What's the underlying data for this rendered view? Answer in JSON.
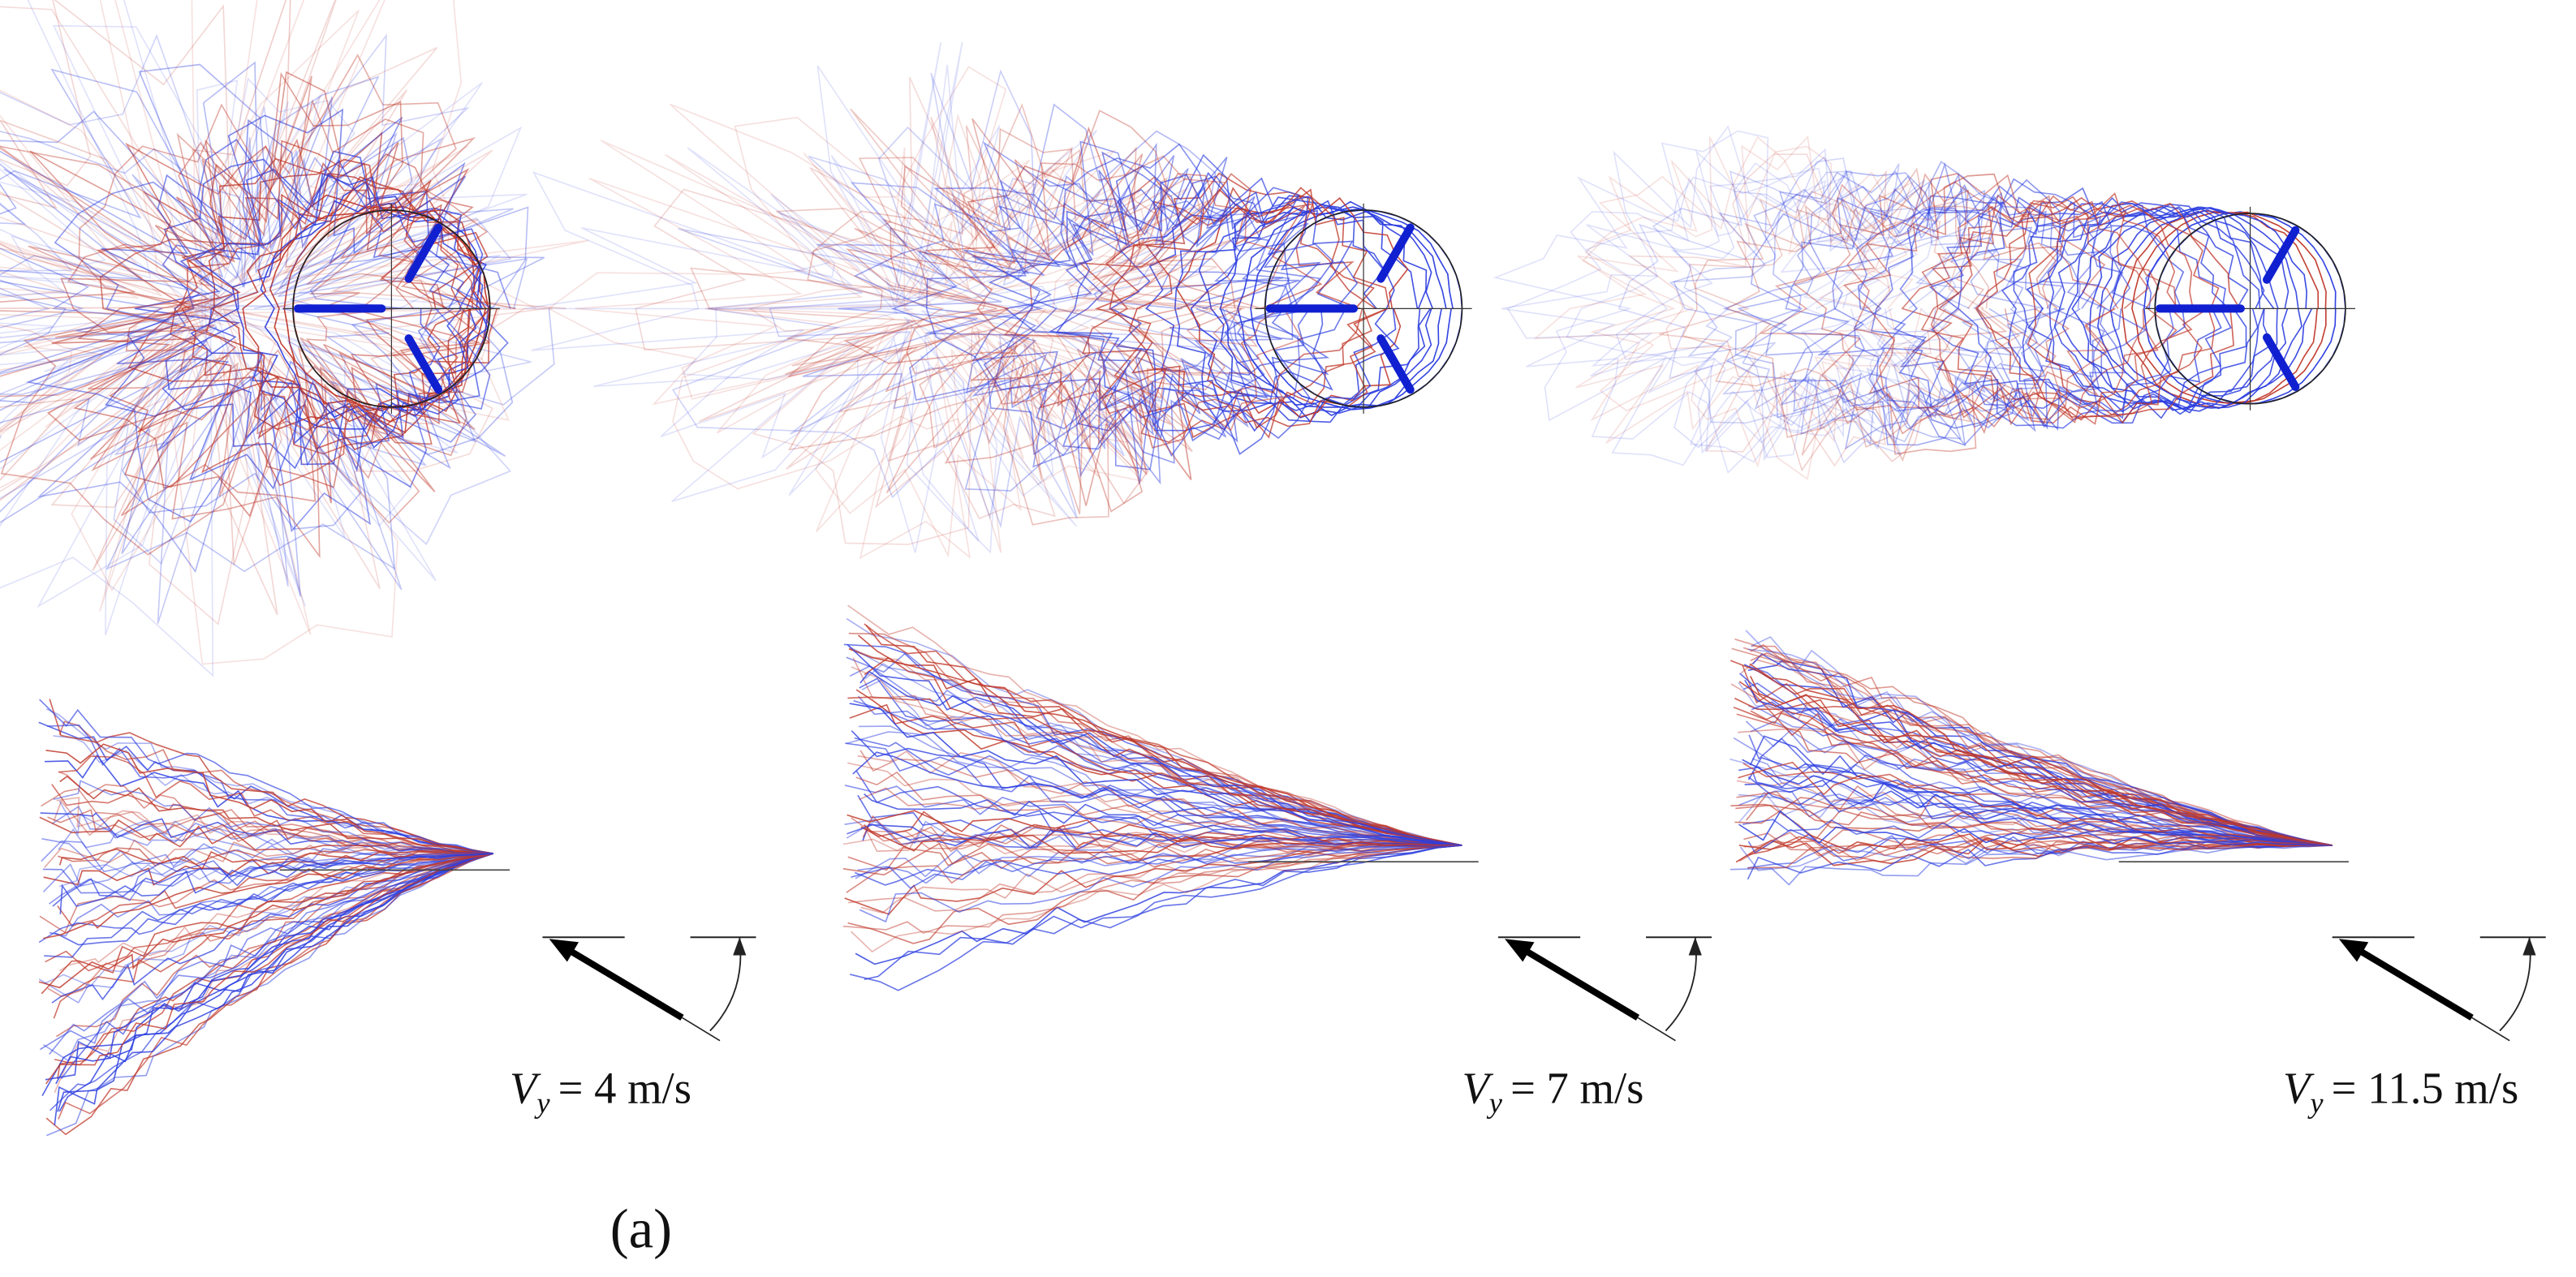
{
  "panels": [
    {
      "variable": "V",
      "subscript": "y",
      "rest": "= 4 m/s"
    },
    {
      "variable": "V",
      "subscript": "y",
      "rest": "= 7 m/s"
    },
    {
      "variable": "V",
      "subscript": "y",
      "rest": "= 11.5 m/s"
    }
  ],
  "caption": "(a)"
}
